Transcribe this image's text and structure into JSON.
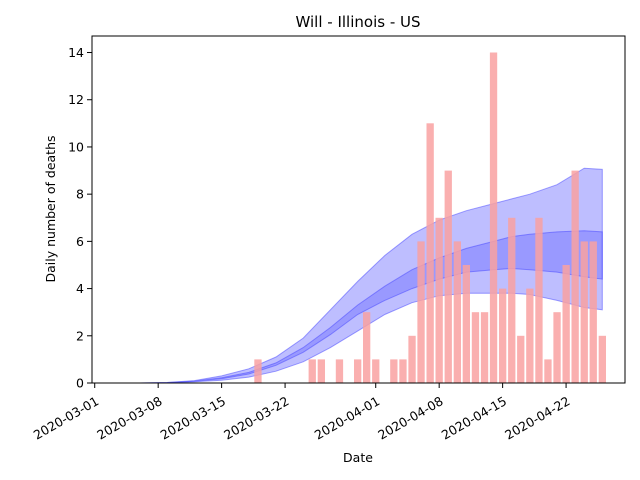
{
  "chart_data": {
    "type": "bar",
    "title": "Will - Illinois - US",
    "xlabel": "Date",
    "ylabel": "Daily number of deaths",
    "ylim": [
      0,
      14.7
    ],
    "y_ticks": [
      "0",
      "2",
      "4",
      "6",
      "8",
      "10",
      "12",
      "14"
    ],
    "x_ticks": [
      "2020-03-01",
      "2020-03-08",
      "2020-03-15",
      "2020-03-22",
      "2020-04-01",
      "2020-04-08",
      "2020-04-15",
      "2020-04-22"
    ],
    "x_tick_days": [
      0,
      7,
      14,
      21,
      31,
      38,
      45,
      52
    ],
    "x_range_days": [
      -0.3,
      58.5
    ],
    "bar_color": "#f9a1a1",
    "band_color": "#4444ff",
    "bars": {
      "name": "Daily deaths",
      "days": [
        18,
        24,
        25,
        27,
        29,
        30,
        31,
        33,
        34,
        35,
        36,
        37,
        38,
        39,
        40,
        41,
        42,
        43,
        44,
        45,
        46,
        47,
        48,
        49,
        50,
        51,
        52,
        53,
        54,
        55,
        56
      ],
      "values": [
        1,
        1,
        1,
        1,
        1,
        3,
        1,
        1,
        1,
        2,
        6,
        11,
        7,
        9,
        6,
        5,
        3,
        3,
        14,
        4,
        7,
        2,
        4,
        7,
        1,
        3,
        5,
        9,
        6,
        6,
        2
      ]
    },
    "bands": {
      "days": [
        0,
        5,
        8,
        11,
        14,
        17,
        20,
        23,
        26,
        29,
        32,
        35,
        38,
        41,
        44,
        46,
        48,
        51,
        54,
        56
      ],
      "outer_low": [
        0,
        0,
        0.01,
        0.05,
        0.12,
        0.25,
        0.5,
        0.9,
        1.5,
        2.2,
        2.9,
        3.4,
        3.7,
        3.8,
        3.8,
        3.8,
        3.75,
        3.5,
        3.2,
        3.1
      ],
      "outer_high": [
        0,
        0,
        0.02,
        0.1,
        0.3,
        0.6,
        1.1,
        1.9,
        3.1,
        4.3,
        5.4,
        6.3,
        6.9,
        7.3,
        7.6,
        7.8,
        8.0,
        8.4,
        9.1,
        9.05
      ],
      "inner_low": [
        0,
        0,
        0.01,
        0.07,
        0.18,
        0.38,
        0.75,
        1.3,
        2.05,
        2.9,
        3.5,
        4.0,
        4.4,
        4.7,
        4.8,
        4.85,
        4.8,
        4.7,
        4.5,
        4.4
      ],
      "inner_high": [
        0,
        0,
        0.02,
        0.08,
        0.22,
        0.45,
        0.85,
        1.5,
        2.35,
        3.3,
        4.1,
        4.8,
        5.3,
        5.7,
        6.0,
        6.2,
        6.3,
        6.4,
        6.45,
        6.4
      ]
    }
  }
}
